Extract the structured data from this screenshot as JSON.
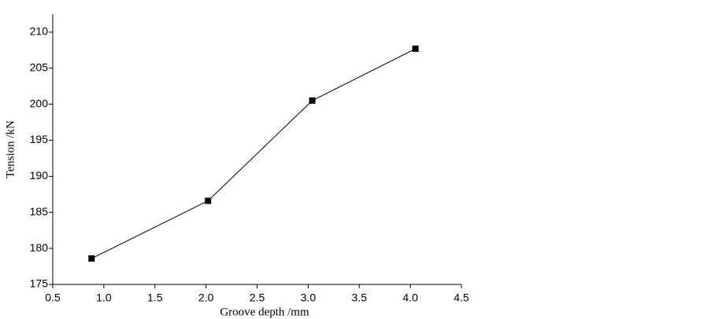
{
  "chart_data": {
    "type": "line",
    "x_label": "Groove depth /mm",
    "y_label": "Tension /kN",
    "x": [
      0.88,
      2.02,
      3.04,
      4.05
    ],
    "values": [
      178.6,
      186.6,
      200.5,
      207.7
    ],
    "color": "#000000",
    "xlim": [
      0.5,
      4.5
    ],
    "ylim": [
      175,
      212.5
    ],
    "xticks": [
      0.5,
      {
        "value": 1,
        "label": "1.0"
      },
      1.5,
      {
        "value": 2,
        "label": "2.0"
      },
      2.5,
      {
        "value": 3,
        "label": "3.0"
      },
      3.5,
      {
        "value": 4,
        "label": "4.0"
      },
      4.5
    ],
    "yticks": [
      175,
      180,
      185,
      190,
      195,
      200,
      205,
      210
    ],
    "grid": false
  }
}
